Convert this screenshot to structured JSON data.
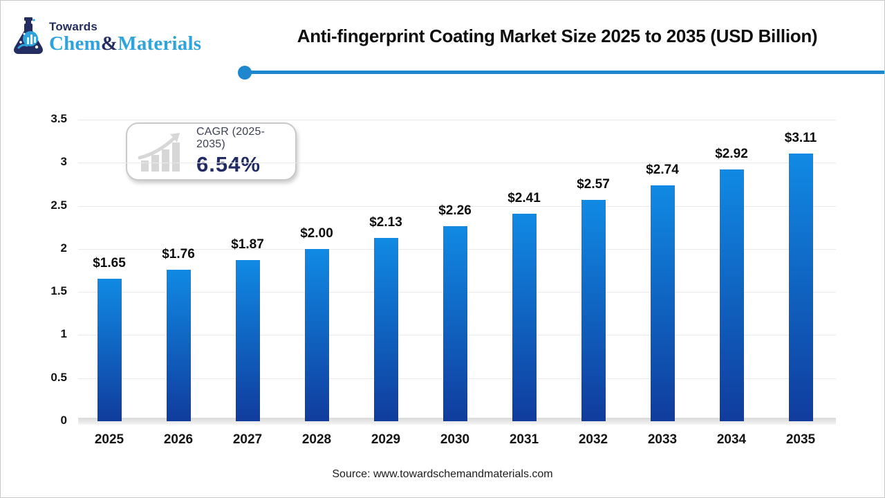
{
  "logo": {
    "towards": "Towards",
    "brand_chem": "Chem",
    "brand_amp": "&",
    "brand_materials": "Materials"
  },
  "header": {
    "title": "Anti-fingerprint Coating Market Size 2025 to 2035 (USD Billion)"
  },
  "cagr_badge": {
    "label": "CAGR (2025-2035)",
    "value": "6.54%"
  },
  "chart_data": {
    "type": "bar",
    "title": "Anti-fingerprint Coating Market Size 2025 to 2035 (USD Billion)",
    "categories": [
      "2025",
      "2026",
      "2027",
      "2028",
      "2029",
      "2030",
      "2031",
      "2032",
      "2033",
      "2034",
      "2035"
    ],
    "values": [
      1.65,
      1.76,
      1.87,
      2.0,
      2.13,
      2.26,
      2.41,
      2.57,
      2.74,
      2.92,
      3.11
    ],
    "value_labels": [
      "$1.65",
      "$1.76",
      "$1.87",
      "$2.00",
      "$2.13",
      "$2.26",
      "$2.41",
      "$2.57",
      "$2.74",
      "$2.92",
      "$3.11"
    ],
    "xlabel": "",
    "ylabel": "",
    "ylim": [
      0,
      3.5
    ],
    "yticks": [
      0,
      0.5,
      1,
      1.5,
      2,
      2.5,
      3,
      3.5
    ],
    "ytick_labels": [
      "0",
      "0.5",
      "1",
      "1.5",
      "2",
      "2.5",
      "3",
      "3.5"
    ],
    "grid": true,
    "legend": "none",
    "bar_color_top": "#108ae4",
    "bar_color_bottom": "#103c9d"
  },
  "footer": {
    "source": "Source: www.towardschemandmaterials.com"
  },
  "colors": {
    "accent_line": "#1f87cd",
    "brand_navy": "#232d62",
    "brand_blue": "#2fa3dc",
    "grid": "#e9e9e9"
  }
}
